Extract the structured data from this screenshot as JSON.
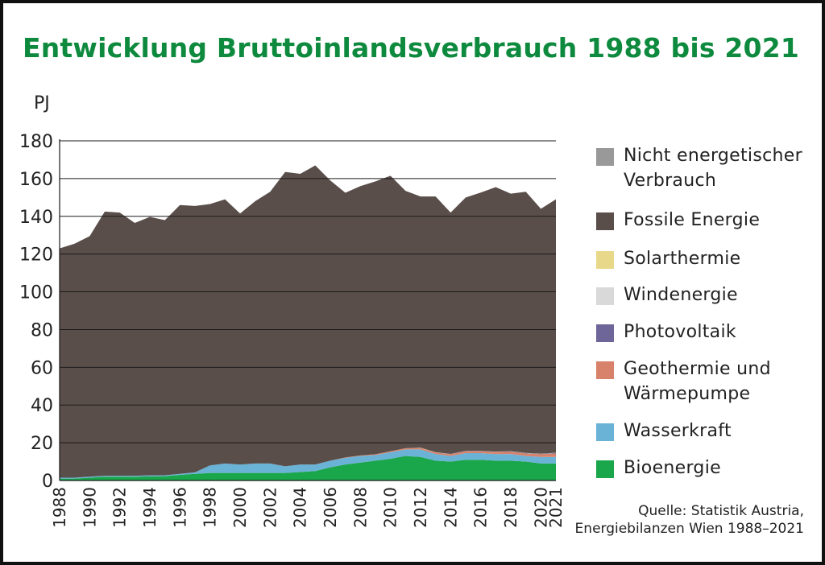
{
  "title": "Entwicklung Bruttoinlandsverbrauch 1988 bis 2021",
  "source": [
    "Quelle: Statistik Austria,",
    "Energiebilanzen Wien 1988–2021"
  ],
  "chart_data": {
    "type": "area",
    "stacked": true,
    "title": "Entwicklung Bruttoinlandsverbrauch 1988 bis 2021",
    "xlabel": "",
    "ylabel": "PJ",
    "ylim": [
      0,
      180
    ],
    "yticks": [
      0,
      20,
      40,
      60,
      80,
      100,
      120,
      140,
      160,
      180
    ],
    "xticks": [
      "1988",
      "1990",
      "1992",
      "1994",
      "1996",
      "1998",
      "2000",
      "2002",
      "2004",
      "2006",
      "2008",
      "2010",
      "2012",
      "2014",
      "2016",
      "2018",
      "2020",
      "2021"
    ],
    "grid": "horizontal",
    "legend_position": "right",
    "x": [
      1988,
      1989,
      1990,
      1991,
      1992,
      1993,
      1994,
      1995,
      1996,
      1997,
      1998,
      1999,
      2000,
      2001,
      2002,
      2003,
      2004,
      2005,
      2006,
      2007,
      2008,
      2009,
      2010,
      2011,
      2012,
      2013,
      2014,
      2015,
      2016,
      2017,
      2018,
      2019,
      2020,
      2021
    ],
    "series": [
      {
        "name": "Bioenergie",
        "color": "#1aa64a",
        "values": [
          1.0,
          1.0,
          1.5,
          2.0,
          2.0,
          2.0,
          2.2,
          2.3,
          3.0,
          3.5,
          4.0,
          4.0,
          4.0,
          4.0,
          4.0,
          4.0,
          4.5,
          5.0,
          7.0,
          8.5,
          9.5,
          10.5,
          11.5,
          13.0,
          12.5,
          10.5,
          10.0,
          11.0,
          11.0,
          10.5,
          10.5,
          10.0,
          9.0,
          9.0
        ]
      },
      {
        "name": "Wasserkraft",
        "color": "#6ab2d6",
        "values": [
          0.5,
          0.5,
          0.5,
          0.5,
          0.5,
          0.5,
          0.5,
          0.5,
          0.5,
          0.8,
          4.0,
          5.0,
          4.5,
          5.0,
          5.0,
          3.5,
          4.0,
          3.5,
          3.5,
          3.5,
          3.5,
          3.0,
          3.5,
          3.5,
          4.0,
          3.5,
          3.0,
          3.5,
          3.5,
          3.5,
          3.5,
          3.0,
          3.5,
          3.5
        ]
      },
      {
        "name": "Geothermie und Wärmepumpe",
        "color": "#d9826b",
        "values": [
          0,
          0,
          0,
          0,
          0,
          0,
          0,
          0,
          0,
          0,
          0,
          0,
          0,
          0,
          0,
          0,
          0,
          0,
          0,
          0.2,
          0.3,
          0.4,
          0.5,
          0.6,
          0.7,
          0.8,
          0.9,
          1.0,
          1.0,
          1.1,
          1.2,
          1.3,
          1.4,
          1.8
        ]
      },
      {
        "name": "Photovoltaik",
        "color": "#6e6699",
        "values": [
          0,
          0,
          0,
          0,
          0,
          0,
          0,
          0,
          0,
          0,
          0,
          0,
          0,
          0,
          0,
          0,
          0,
          0,
          0,
          0,
          0,
          0,
          0,
          0,
          0.1,
          0.1,
          0.1,
          0.1,
          0.1,
          0.1,
          0.2,
          0.2,
          0.2,
          0.3
        ]
      },
      {
        "name": "Windenergie",
        "color": "#d9d9d9",
        "values": [
          0,
          0,
          0,
          0,
          0,
          0,
          0,
          0,
          0,
          0,
          0,
          0,
          0,
          0,
          0,
          0,
          0,
          0,
          0,
          0,
          0,
          0,
          0,
          0,
          0,
          0,
          0,
          0,
          0,
          0,
          0,
          0,
          0,
          0
        ]
      },
      {
        "name": "Solarthermie",
        "color": "#e8d98a",
        "values": [
          0,
          0,
          0,
          0,
          0,
          0,
          0,
          0,
          0,
          0,
          0,
          0,
          0,
          0,
          0,
          0,
          0,
          0,
          0,
          0,
          0,
          0,
          0,
          0,
          0.1,
          0.1,
          0.1,
          0.1,
          0.1,
          0.1,
          0.1,
          0.1,
          0.1,
          0.1
        ]
      },
      {
        "name": "Fossile Energie",
        "color": "#5a4e4a",
        "values": [
          121.5,
          124.0,
          127.5,
          140.0,
          139.5,
          134.0,
          137.0,
          135.2,
          142.5,
          141.2,
          138.5,
          140.0,
          133.0,
          139.0,
          144.0,
          156.0,
          154.0,
          158.5,
          148.5,
          140.3,
          142.7,
          144.6,
          146.0,
          136.4,
          133.1,
          135.5,
          127.9,
          134.3,
          136.9,
          140.2,
          136.5,
          138.4,
          129.8,
          134.3
        ]
      },
      {
        "name": "Nicht energetischer Verbrauch",
        "color": "#999999",
        "values": [
          0,
          0,
          0,
          0,
          0,
          0,
          0,
          0,
          0,
          0,
          0,
          0,
          0,
          0,
          0,
          0,
          0,
          0,
          0,
          0,
          0,
          0,
          0,
          0,
          0,
          0,
          0,
          0,
          0,
          0,
          0,
          0,
          0,
          0
        ]
      }
    ],
    "legend_order": [
      "Nicht energetischer\nVerbrauch",
      "Fossile Energie",
      "Solarthermie",
      "Windenergie",
      "Photovoltaik",
      "Geothermie und\nWärmepumpe",
      "Wasserkraft",
      "Bioenergie"
    ]
  },
  "legend": [
    {
      "label": "Nicht energetischer\nVerbrauch",
      "color": "#999999"
    },
    {
      "label": "Fossile Energie",
      "color": "#5a4e4a"
    },
    {
      "label": "Solarthermie",
      "color": "#e8d98a"
    },
    {
      "label": "Windenergie",
      "color": "#d9d9d9"
    },
    {
      "label": "Photovoltaik",
      "color": "#6e6699"
    },
    {
      "label": "Geothermie und\nWärmepumpe",
      "color": "#d9826b"
    },
    {
      "label": "Wasserkraft",
      "color": "#6ab2d6"
    },
    {
      "label": "Bioenergie",
      "color": "#1aa64a"
    }
  ]
}
